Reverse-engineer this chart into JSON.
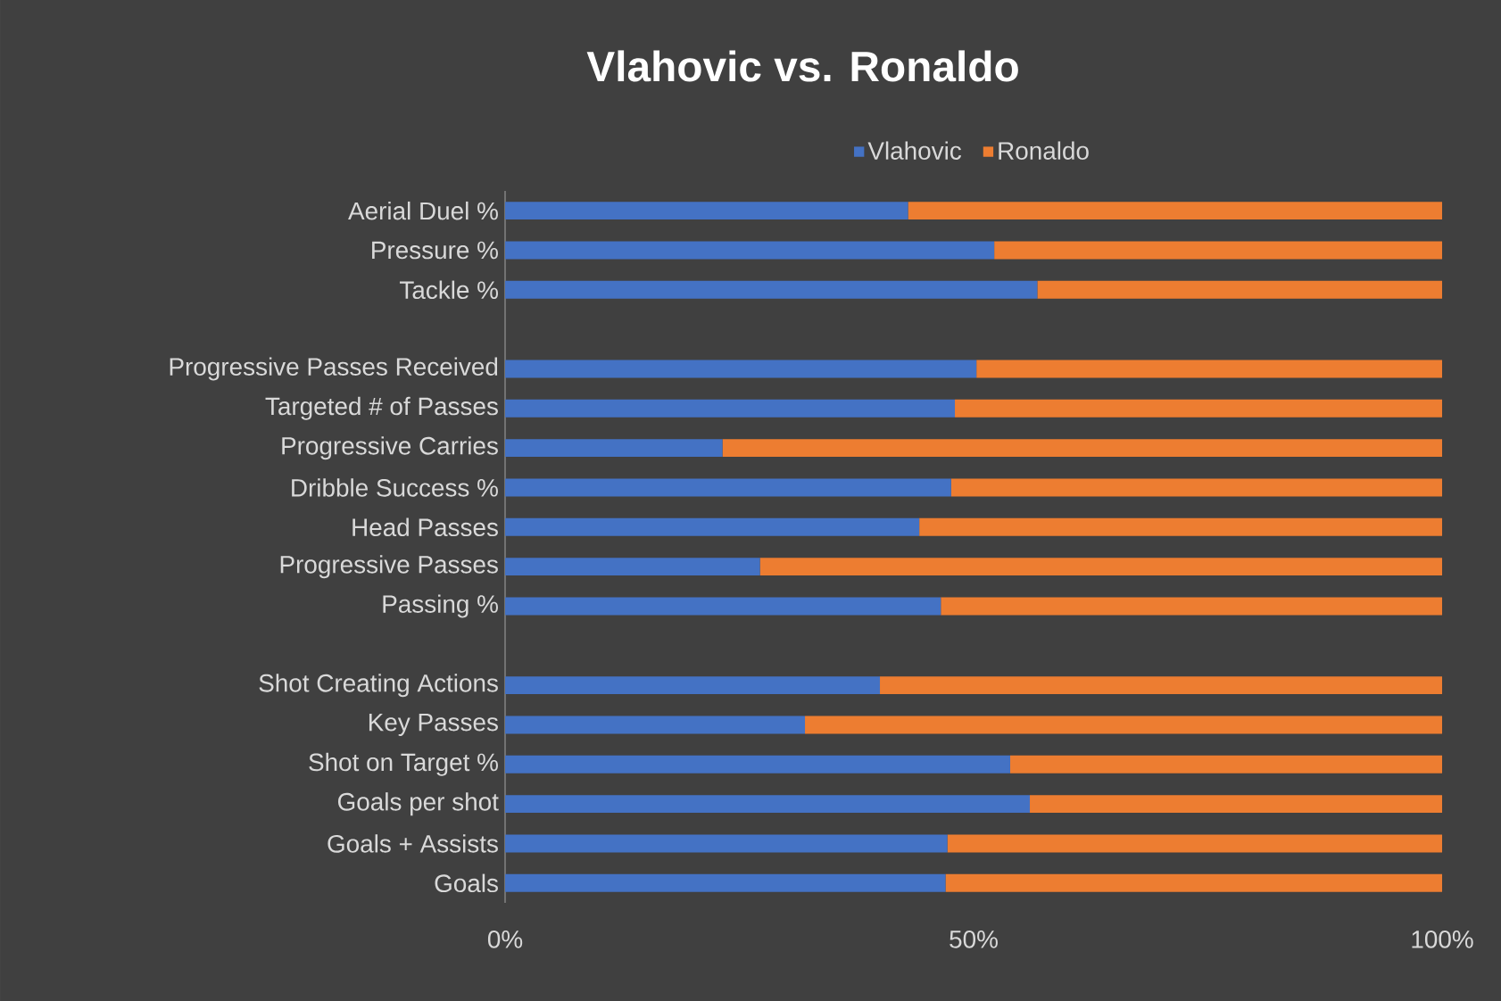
{
  "chart_data": {
    "type": "bar",
    "title": "Vlahovic vs. Ronaldo",
    "orientation": "horizontal",
    "stacked": true,
    "legend": "top",
    "categories": [
      "Aerial Duel %",
      "Pressure %",
      "Tackle %",
      null,
      "Progressive Passes Received",
      "Targeted # of Passes",
      "Progressive Carries",
      "Dribble Success %",
      "Head Passes",
      "Progressive Passes",
      "Passing %",
      null,
      "Shot Creating Actions",
      "Key Passes",
      "Shot on Target %",
      "Goals per shot",
      "Goals + Assists",
      "Goals"
    ],
    "series": [
      {
        "name": "Vlahovic",
        "color": "#4472c4",
        "values": [
          43.0,
          52.2,
          56.8,
          null,
          50.3,
          48.0,
          23.2,
          47.6,
          44.2,
          27.2,
          46.5,
          null,
          40.0,
          32.0,
          53.9,
          56.0,
          47.2,
          47.0
        ]
      },
      {
        "name": "Ronaldo",
        "color": "#ed7d31",
        "values": [
          57.0,
          47.8,
          43.2,
          null,
          49.7,
          52.0,
          76.8,
          52.4,
          55.8,
          72.8,
          53.5,
          null,
          60.0,
          68.0,
          46.1,
          44.0,
          52.8,
          53.0
        ]
      }
    ],
    "xlim": [
      0,
      100
    ],
    "xticks": [
      {
        "value": 0,
        "label": "0%"
      },
      {
        "value": 50,
        "label": "50%"
      },
      {
        "value": 100,
        "label": "100%"
      }
    ]
  }
}
